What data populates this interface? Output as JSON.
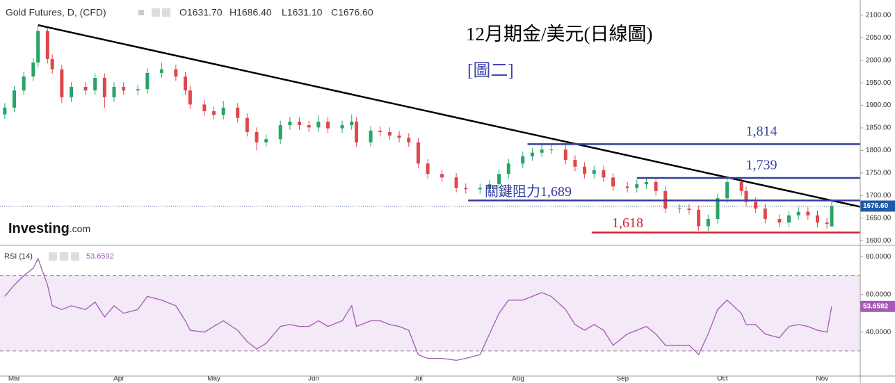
{
  "header": {
    "title": "Gold Futures, D, (CFD)",
    "ohlc": [
      "O1631.70",
      "H1686.40",
      "L1631.10",
      "C1676.60"
    ]
  },
  "logo": {
    "name": "Investing",
    "suffix": ".com"
  },
  "chart_data": [
    {
      "type": "candlestick",
      "title": "12月期金/美元(日線圖)",
      "subtitle": "[圖二]",
      "x": [
        -2,
        0,
        2,
        4,
        5,
        7,
        8,
        10,
        12,
        15,
        17,
        19,
        21,
        23,
        26,
        28,
        31,
        34,
        36,
        37,
        40,
        42,
        44,
        47,
        49,
        51,
        53,
        56,
        58,
        60,
        62,
        64,
        66,
        69,
        71,
        72,
        75,
        77,
        79,
        81,
        83,
        85,
        87,
        90,
        93,
        95,
        98,
        100,
        102,
        104,
        107,
        109,
        111,
        113,
        116,
        118,
        120,
        122,
        124,
        126,
        129,
        131,
        133,
        135,
        137,
        140,
        142,
        144,
        146,
        148,
        150,
        153,
        154,
        156,
        158,
        161,
        163,
        165,
        167,
        169,
        171,
        172
      ],
      "open": [
        1880,
        1895,
        1933,
        1964,
        1995,
        2065,
        2003,
        1980,
        1918,
        1941,
        1933,
        1961,
        1918,
        1941,
        1933,
        1936,
        1972,
        1980,
        1964,
        1933,
        1902,
        1887,
        1879,
        1895,
        1872,
        1841,
        1818,
        1825,
        1856,
        1864,
        1856,
        1851,
        1864,
        1849,
        1856,
        1864,
        1818,
        1844,
        1841,
        1833,
        1828,
        1818,
        1771,
        1748,
        1740,
        1717,
        1714,
        1717,
        1725,
        1748,
        1771,
        1787,
        1795,
        1802,
        1802,
        1779,
        1764,
        1748,
        1756,
        1740,
        1720,
        1717,
        1725,
        1730,
        1710,
        1671,
        1671,
        1668,
        1632,
        1648,
        1694,
        1730,
        1710,
        1686,
        1671,
        1648,
        1640,
        1656,
        1664,
        1656,
        1640,
        1631.7
      ],
      "high": [
        1905,
        1943,
        1974,
        2005,
        2078,
        2075,
        2013,
        1990,
        1951,
        1951,
        1971,
        1971,
        1951,
        1951,
        1946,
        1982,
        1995,
        1990,
        1974,
        1943,
        1912,
        1897,
        1910,
        1905,
        1882,
        1851,
        1835,
        1866,
        1874,
        1874,
        1866,
        1878,
        1874,
        1866,
        1880,
        1874,
        1854,
        1854,
        1851,
        1843,
        1838,
        1828,
        1781,
        1758,
        1750,
        1727,
        1727,
        1735,
        1758,
        1781,
        1797,
        1805,
        1812,
        1812,
        1812,
        1789,
        1774,
        1766,
        1766,
        1750,
        1730,
        1735,
        1740,
        1740,
        1720,
        1681,
        1681,
        1678,
        1658,
        1704,
        1742,
        1740,
        1720,
        1696,
        1681,
        1658,
        1666,
        1674,
        1674,
        1666,
        1650,
        1686.4
      ],
      "low": [
        1870,
        1885,
        1923,
        1954,
        1985,
        1993,
        1970,
        1905,
        1908,
        1923,
        1923,
        1895,
        1908,
        1923,
        1923,
        1926,
        1962,
        1954,
        1923,
        1892,
        1877,
        1869,
        1869,
        1862,
        1831,
        1800,
        1808,
        1815,
        1846,
        1846,
        1841,
        1841,
        1839,
        1839,
        1846,
        1808,
        1808,
        1831,
        1823,
        1818,
        1808,
        1761,
        1738,
        1730,
        1707,
        1704,
        1704,
        1707,
        1715,
        1738,
        1761,
        1777,
        1785,
        1792,
        1769,
        1754,
        1738,
        1738,
        1730,
        1710,
        1707,
        1707,
        1715,
        1700,
        1661,
        1661,
        1658,
        1622,
        1622,
        1638,
        1684,
        1700,
        1676,
        1661,
        1638,
        1630,
        1630,
        1646,
        1646,
        1630,
        1627,
        1631.1
      ],
      "close": [
        1895,
        1933,
        1964,
        1995,
        2065,
        2003,
        1980,
        1918,
        1941,
        1933,
        1961,
        1918,
        1941,
        1933,
        1936,
        1972,
        1980,
        1964,
        1933,
        1902,
        1887,
        1879,
        1895,
        1872,
        1841,
        1818,
        1825,
        1856,
        1864,
        1856,
        1851,
        1864,
        1849,
        1856,
        1864,
        1818,
        1844,
        1841,
        1833,
        1828,
        1818,
        1771,
        1748,
        1740,
        1717,
        1714,
        1717,
        1725,
        1748,
        1771,
        1787,
        1795,
        1802,
        1802,
        1779,
        1764,
        1748,
        1756,
        1740,
        1720,
        1717,
        1725,
        1730,
        1710,
        1671,
        1671,
        1668,
        1632,
        1648,
        1694,
        1730,
        1710,
        1686,
        1671,
        1648,
        1640,
        1656,
        1664,
        1656,
        1640,
        1637,
        1676.6
      ],
      "up_color": "#27a468",
      "down_color": "#e0474c",
      "xlim": [
        -3,
        178
      ],
      "ylim": [
        1591,
        2126
      ],
      "xticks": [
        {
          "value": 0,
          "label": "Mar"
        },
        {
          "value": 22,
          "label": "Apr"
        },
        {
          "value": 42,
          "label": "May"
        },
        {
          "value": 63,
          "label": "Jun"
        },
        {
          "value": 85,
          "label": "Jul"
        },
        {
          "value": 106,
          "label": "Aug"
        },
        {
          "value": 128,
          "label": "Sep"
        },
        {
          "value": 149,
          "label": "Oct"
        },
        {
          "value": 170,
          "label": "Nov"
        }
      ],
      "yticks": [
        {
          "value": 1600,
          "label": "1600.00"
        },
        {
          "value": 1650,
          "label": "1650.00"
        },
        {
          "value": 1700,
          "label": "1700.00"
        },
        {
          "value": 1750,
          "label": "1750.00"
        },
        {
          "value": 1800,
          "label": "1800.00"
        },
        {
          "value": 1850,
          "label": "1850.00"
        },
        {
          "value": 1900,
          "label": "1900.00"
        },
        {
          "value": 1950,
          "label": "1950.00"
        },
        {
          "value": 2000,
          "label": "2000.00"
        },
        {
          "value": 2050,
          "label": "2050.00"
        },
        {
          "value": 2100,
          "label": "2100.00"
        }
      ],
      "levels": [
        {
          "value": 1814,
          "label": "1,814",
          "from": 108,
          "color": "#343c9e"
        },
        {
          "value": 1739,
          "label": "1,739",
          "from": 131,
          "color": "#343c9e"
        },
        {
          "value": 1689,
          "label": "關鍵阻力1,689",
          "from": 95.5,
          "color": "#343c9e"
        },
        {
          "value": 1618,
          "label": "1,618",
          "from": 121.5,
          "color": "#d0202a"
        }
      ],
      "trendline": {
        "x": [
          5,
          178
        ],
        "y": [
          2078,
          1675
        ],
        "color": "#000000"
      },
      "last_price": {
        "value": 1676.6,
        "label": "1676.60"
      }
    },
    {
      "type": "line",
      "name": "RSI (14)",
      "x": [
        -2,
        0,
        2,
        4,
        5,
        7,
        8,
        10,
        12,
        15,
        17,
        19,
        21,
        23,
        26,
        28,
        31,
        34,
        36,
        37,
        40,
        42,
        44,
        47,
        49,
        51,
        53,
        56,
        58,
        60,
        62,
        64,
        66,
        69,
        71,
        72,
        75,
        77,
        79,
        81,
        83,
        85,
        87,
        90,
        93,
        95,
        98,
        100,
        102,
        104,
        107,
        109,
        111,
        113,
        116,
        118,
        120,
        122,
        124,
        126,
        129,
        131,
        133,
        135,
        137,
        140,
        142,
        144,
        146,
        148,
        150,
        153,
        154,
        156,
        158,
        161,
        163,
        165,
        167,
        169,
        171,
        172
      ],
      "values": [
        59,
        65,
        70,
        74,
        79,
        65,
        54,
        52,
        54,
        52,
        56,
        48,
        54,
        50,
        52,
        59,
        57,
        54,
        46,
        41,
        40,
        43,
        46,
        41,
        35,
        31,
        34,
        43,
        44,
        43,
        43,
        46,
        43,
        46,
        54,
        43,
        46,
        46,
        44,
        43,
        41,
        28,
        26,
        26,
        25,
        26,
        28,
        39,
        50,
        57,
        57,
        59,
        61,
        59,
        52,
        44,
        41,
        44,
        41,
        33,
        39,
        41,
        43,
        39,
        33,
        33,
        33,
        28,
        39,
        52,
        57,
        50,
        44,
        44,
        39,
        37,
        43,
        44,
        43,
        41,
        40,
        53.6592
      ],
      "color": "#a35bb5",
      "band": [
        30,
        70
      ],
      "band_color": "#f4e9f7",
      "xlim": [
        -3,
        178
      ],
      "ylim": [
        17,
        85
      ],
      "yticks": [
        {
          "value": 40,
          "label": "40.0000"
        },
        {
          "value": 60,
          "label": "60.0000"
        },
        {
          "value": 80,
          "label": "80.0000"
        }
      ],
      "last_value": 53.6592
    }
  ]
}
